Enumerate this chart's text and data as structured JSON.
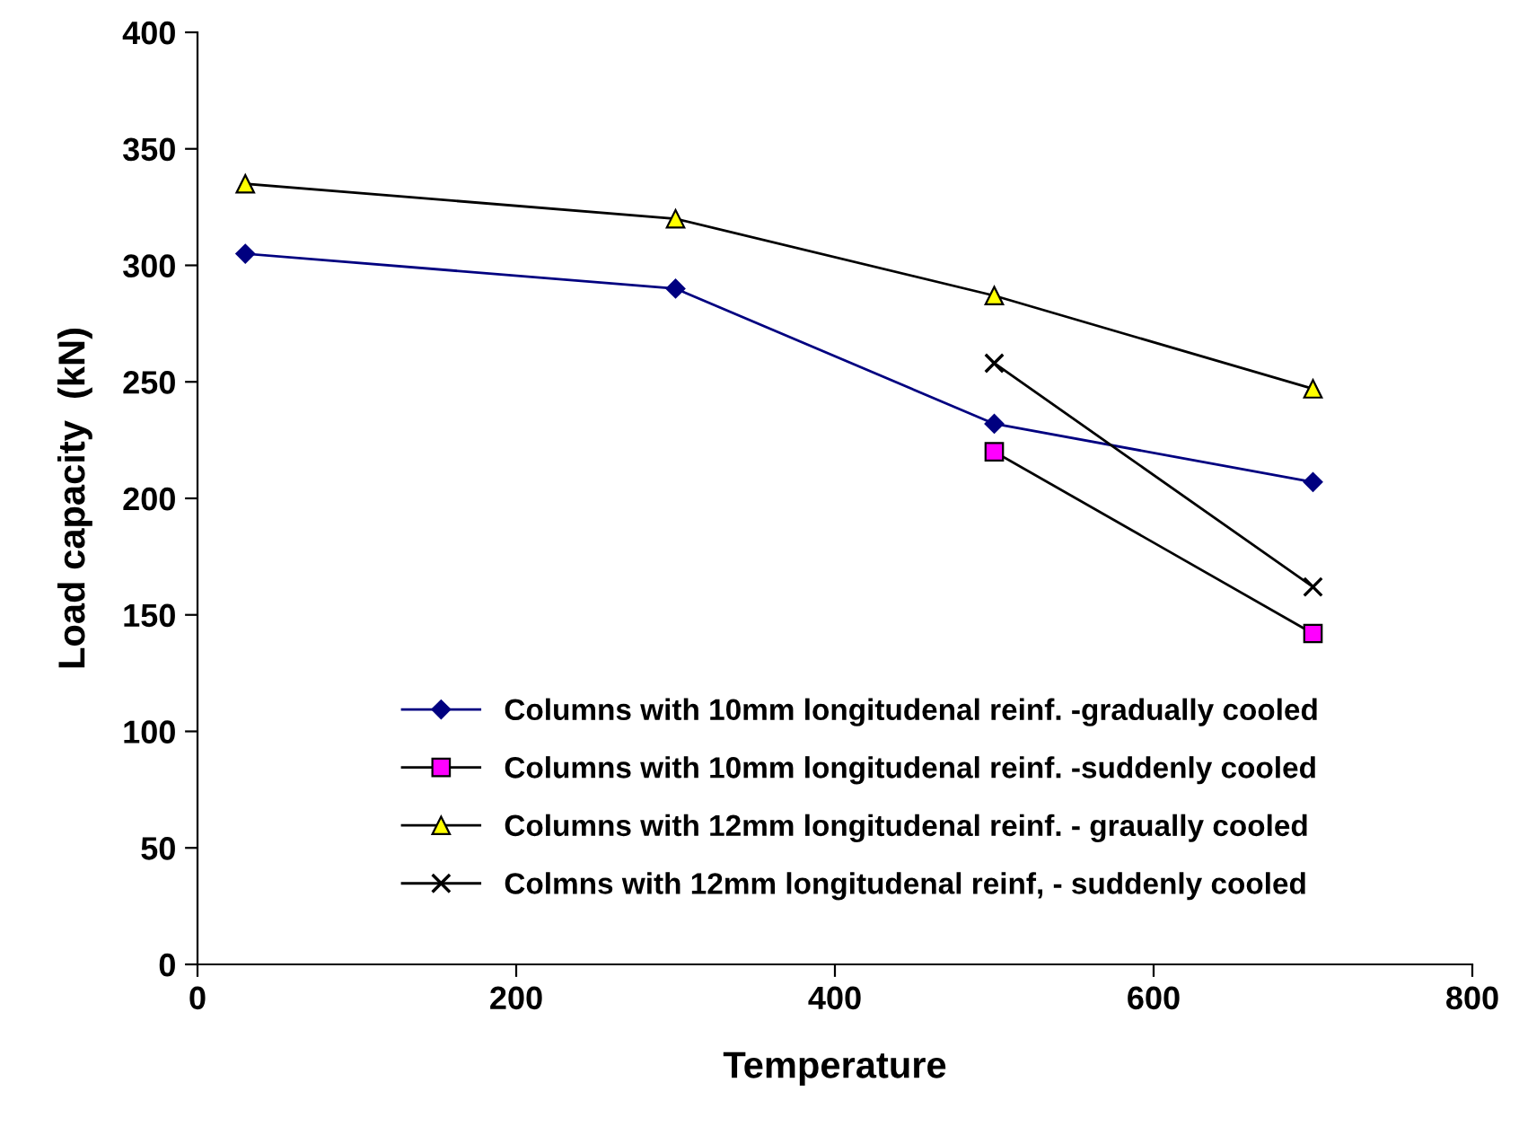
{
  "chart_data": {
    "type": "line",
    "xlabel": "Temperature",
    "ylabel": "Load capacity  (kN)",
    "xlim": [
      0,
      800
    ],
    "xticks": [
      0,
      200,
      400,
      600,
      800
    ],
    "ylim": [
      0,
      400
    ],
    "yticks": [
      0,
      50,
      100,
      150,
      200,
      250,
      300,
      350,
      400
    ],
    "grid": false,
    "legend": "bottom",
    "series": [
      {
        "name": "Columns with 10mm longitudenal reinf. -gradually cooled",
        "color": "#000080",
        "marker": "diamond",
        "x": [
          30,
          300,
          500,
          700
        ],
        "values": [
          305,
          290,
          232,
          207
        ]
      },
      {
        "name": "Columns with 10mm longitudenal reinf. -suddenly cooled",
        "color": "#000000",
        "colors": [
          "#ff00ff",
          "#ff00ff"
        ],
        "marker": "square",
        "x": [
          500,
          700
        ],
        "values": [
          220,
          142
        ]
      },
      {
        "name": "Columns with 12mm longitudenal reinf. - graually cooled",
        "color": "#000000",
        "colors": [
          "#ffff00",
          "#ffff00",
          "#ffff00",
          "#ffff00"
        ],
        "marker": "triangle",
        "x": [
          30,
          300,
          500,
          700
        ],
        "values": [
          335,
          320,
          287,
          247
        ]
      },
      {
        "name": "Colmns with 12mm longitudenal reinf, - suddenly cooled",
        "color": "#000000",
        "marker": "cross",
        "x": [
          500,
          700
        ],
        "values": [
          258,
          162
        ]
      }
    ]
  }
}
